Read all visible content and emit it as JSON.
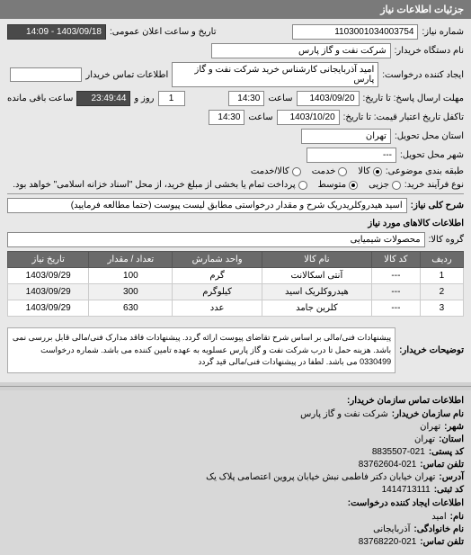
{
  "header": {
    "title": "جزئیات اطلاعات نیاز"
  },
  "form": {
    "request_number_label": "شماره نیاز:",
    "request_number": "1103001034003754",
    "announce_datetime_label": "تاریخ و ساعت اعلان عمومی:",
    "announce_datetime": "1403/09/18 - 14:09",
    "buyer_org_label": "نام دستگاه خریدار:",
    "buyer_org": "شرکت نفت و گاز پارس",
    "requester_label": "ایجاد کننده درخواست:",
    "requester": "امید آذربایجانی کارشناس خرید  شرکت نفت و گاز پارس",
    "contact_info_label": "اطلاعات تماس خریدار",
    "deadline_send_label": "مهلت ارسال پاسخ: تا تاریخ:",
    "deadline_send_date": "1403/09/20",
    "time_label": "ساعت",
    "deadline_send_time": "14:30",
    "days_remaining": "1",
    "days_label": "روز و",
    "time_remaining": "23:49:44",
    "time_remaining_label": "ساعت باقی مانده",
    "validity_label": "تاکفل تاریخ اعتبار قیمت: تا تاریخ:",
    "validity_date": "1403/10/20",
    "validity_time": "14:30",
    "delivery_province_label": "استان محل تحویل:",
    "delivery_province": "تهران",
    "delivery_city_label": "شهر محل تحویل:",
    "delivery_city": "---",
    "demand_type_label": "طبقه بندی موضوعی:",
    "demand_type_options": [
      "کالا",
      "خدمت",
      "کالا/خدمت"
    ],
    "process_type_label": "نوع فرآیند خرید:",
    "process_type_options": [
      "جزیی",
      "متوسط",
      "پرداخت تمام یا بخشی از مبلغ خرید، از محل \"اسناد خزانه اسلامی\" خواهد بود."
    ],
    "general_desc_label": "شرح کلی نیاز:",
    "general_desc": "اسید هیدروکلریدریک شرح و مقدار درخواستی مطابق لیست پیوست (حتما مطالعه فرمایید)",
    "goods_info_label": "اطلاعات کالاهای مورد نیاز",
    "goods_group_label": "گروه کالا:",
    "goods_group": "محصولات شیمیایی"
  },
  "table": {
    "columns": [
      "ردیف",
      "کد کالا",
      "نام کالا",
      "واحد شمارش",
      "تعداد / مقدار",
      "تاریخ نیاز"
    ],
    "rows": [
      [
        "1",
        "---",
        "آنتی اسکالانت",
        "گرم",
        "100",
        "1403/09/29"
      ],
      [
        "2",
        "---",
        "هیدروکلریک اسید",
        "کیلوگرم",
        "300",
        "1403/09/29"
      ],
      [
        "3",
        "---",
        "کلرین جامد",
        "عدد",
        "630",
        "1403/09/29"
      ]
    ]
  },
  "notes": {
    "label": "توضیحات خریدار:",
    "text": "پیشنهادات فنی/مالی بر اساس شرح تقاضای پیوست ارائه گردد. پیشنهادات فاقد مدارک فنی/مالی قابل بررسی نمی باشد. هزینه حمل تا درب شرکت نفت و گاز پارس عسلویه به عهده تامین کننده می باشد. شماره درخواست 0330499 می باشد. لطفا در پیشنهادات فنی/مالی قید گردد"
  },
  "contact": {
    "section_title": "اطلاعات تماس سازمان خریدار:",
    "org_label": "نام سازمان خریدار:",
    "org": "شرکت نفت و گاز پارس",
    "city_label": "شهر:",
    "city": "تهران",
    "province_label": "استان:",
    "province": "تهران",
    "postal_label": "کد پستی:",
    "postal": "8835507-021",
    "phone_label": "تلفن تماس:",
    "phone": "83762604-021",
    "address_label": "آدرس:",
    "address": "تهران خیابان دکتر فاطمی نبش خیابان پروین اعتصامی پلاک یک",
    "requester_section": "اطلاعات ایجاد کننده درخواست:",
    "reg_label": "کد ثبتی:",
    "reg": "1414713111",
    "name_label": "نام:",
    "name": "امید",
    "family_label": "نام خانوادگی:",
    "family": "آذربایجانی",
    "req_phone_label": "تلفن تماس:",
    "req_phone": "83768220-021"
  }
}
